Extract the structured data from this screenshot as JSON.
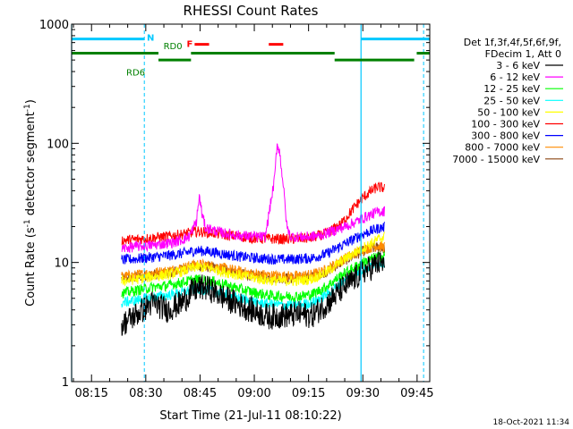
{
  "chart_data": {
    "type": "line",
    "title": "RHESSI Count Rates",
    "xlabel": "Start Time (21-Jul-11 08:10:22)",
    "ylabel_main": "Count Rate (s",
    "ylabel_sup1": "-1",
    "ylabel_mid": " detector segment",
    "ylabel_sup2": "-1",
    "ylabel_end": ")",
    "x_axis": {
      "unit": "minutes since 08:00",
      "xlim": [
        9.5,
        108.5
      ],
      "ticks": [
        {
          "minute": 15,
          "label": "08:15"
        },
        {
          "minute": 30,
          "label": "08:30"
        },
        {
          "minute": 45,
          "label": "08:45"
        },
        {
          "minute": 60,
          "label": "09:00"
        },
        {
          "minute": 75,
          "label": "09:15"
        },
        {
          "minute": 90,
          "label": "09:30"
        },
        {
          "minute": 105,
          "label": "09:45"
        }
      ]
    },
    "y_axis": {
      "scale": "log",
      "ylim": [
        1,
        1000
      ],
      "ticks": [
        {
          "value": 1,
          "label": "1"
        },
        {
          "value": 10,
          "label": "10"
        },
        {
          "value": 100,
          "label": "100"
        },
        {
          "value": 1000,
          "label": "1000"
        }
      ]
    },
    "legend": {
      "placement": "right",
      "header": [
        "Det 1f,3f,4f,5f,6f,9f,",
        "FDecim 1, Att 0"
      ]
    },
    "series": [
      {
        "name": "3 - 6 keV",
        "color": "#000000",
        "points": [
          [
            23.3,
            3.0
          ],
          [
            27,
            3.6
          ],
          [
            32,
            4.6
          ],
          [
            36,
            4.0
          ],
          [
            40,
            4.6
          ],
          [
            43,
            5.8
          ],
          [
            46,
            6.2
          ],
          [
            48,
            5.9
          ],
          [
            52,
            5.0
          ],
          [
            56,
            4.4
          ],
          [
            60,
            3.9
          ],
          [
            64,
            3.5
          ],
          [
            68,
            3.6
          ],
          [
            70,
            3.6
          ],
          [
            72,
            3.7
          ],
          [
            76,
            3.6
          ],
          [
            80,
            4.5
          ],
          [
            84,
            5.9
          ],
          [
            88,
            7.4
          ],
          [
            90,
            8.4
          ],
          [
            92,
            8.9
          ],
          [
            94,
            9.8
          ],
          [
            96,
            9.7
          ]
        ]
      },
      {
        "name": "6 - 12 keV",
        "color": "#ff00ff",
        "points": [
          [
            23.3,
            13.0
          ],
          [
            27,
            13.6
          ],
          [
            30,
            13.8
          ],
          [
            34,
            14.2
          ],
          [
            38,
            14.8
          ],
          [
            40,
            15.5
          ],
          [
            42,
            16.5
          ],
          [
            44,
            22
          ],
          [
            44.8,
            36
          ],
          [
            45.5,
            26
          ],
          [
            46.5,
            19.5
          ],
          [
            49,
            18.5
          ],
          [
            52,
            17.5
          ],
          [
            56,
            16.8
          ],
          [
            60,
            16.5
          ],
          [
            63,
            16.3
          ],
          [
            65.6,
            50
          ],
          [
            66.3,
            100
          ],
          [
            67,
            85
          ],
          [
            68,
            45
          ],
          [
            69,
            20
          ],
          [
            70,
            16.5
          ],
          [
            74,
            16.3
          ],
          [
            78,
            16.8
          ],
          [
            82,
            18.5
          ],
          [
            86,
            20.5
          ],
          [
            90,
            23.5
          ],
          [
            92,
            25
          ],
          [
            94,
            26.5
          ],
          [
            96,
            27
          ]
        ]
      },
      {
        "name": "12 - 25 keV",
        "color": "#00ff00",
        "points": [
          [
            23.3,
            5.5
          ],
          [
            27,
            5.8
          ],
          [
            32,
            6.2
          ],
          [
            36,
            6.4
          ],
          [
            40,
            6.8
          ],
          [
            44,
            7.2
          ],
          [
            48,
            7.0
          ],
          [
            52,
            6.5
          ],
          [
            56,
            6.0
          ],
          [
            60,
            5.6
          ],
          [
            64,
            5.3
          ],
          [
            68,
            5.2
          ],
          [
            72,
            5.2
          ],
          [
            76,
            5.4
          ],
          [
            80,
            6.3
          ],
          [
            84,
            7.8
          ],
          [
            88,
            9.2
          ],
          [
            90,
            10.0
          ],
          [
            92,
            10.6
          ],
          [
            94,
            11.1
          ],
          [
            96,
            11.3
          ]
        ]
      },
      {
        "name": "25 - 50 keV",
        "color": "#00ffff",
        "points": [
          [
            23.3,
            4.6
          ],
          [
            27,
            4.8
          ],
          [
            32,
            5.1
          ],
          [
            36,
            5.3
          ],
          [
            40,
            5.6
          ],
          [
            44,
            6.0
          ],
          [
            48,
            5.8
          ],
          [
            52,
            5.4
          ],
          [
            56,
            5.0
          ],
          [
            60,
            4.7
          ],
          [
            64,
            4.5
          ],
          [
            68,
            4.4
          ],
          [
            72,
            4.4
          ],
          [
            76,
            4.6
          ],
          [
            80,
            5.4
          ],
          [
            84,
            6.7
          ],
          [
            88,
            8.0
          ],
          [
            90,
            8.8
          ],
          [
            92,
            9.3
          ],
          [
            94,
            9.8
          ],
          [
            96,
            10.0
          ]
        ]
      },
      {
        "name": "50 - 100 keV",
        "color": "#ffff00",
        "points": [
          [
            23.3,
            7.0
          ],
          [
            27,
            7.2
          ],
          [
            32,
            7.6
          ],
          [
            36,
            7.9
          ],
          [
            40,
            8.4
          ],
          [
            44,
            9.2
          ],
          [
            48,
            8.9
          ],
          [
            52,
            8.3
          ],
          [
            56,
            7.8
          ],
          [
            60,
            7.4
          ],
          [
            64,
            7.1
          ],
          [
            68,
            7.0
          ],
          [
            72,
            7.0
          ],
          [
            76,
            7.3
          ],
          [
            80,
            8.3
          ],
          [
            84,
            10.2
          ],
          [
            88,
            12.2
          ],
          [
            90,
            13.3
          ],
          [
            92,
            14.2
          ],
          [
            94,
            15.5
          ],
          [
            96,
            16.5
          ]
        ]
      },
      {
        "name": "100 - 300 keV",
        "color": "#ff0000",
        "points": [
          [
            23.3,
            15.3
          ],
          [
            27,
            15.6
          ],
          [
            32,
            16.1
          ],
          [
            36,
            16.5
          ],
          [
            40,
            17.2
          ],
          [
            44,
            18.2
          ],
          [
            48,
            17.8
          ],
          [
            52,
            17.0
          ],
          [
            56,
            16.5
          ],
          [
            60,
            16.0
          ],
          [
            64,
            15.8
          ],
          [
            68,
            15.7
          ],
          [
            72,
            15.8
          ],
          [
            76,
            16.1
          ],
          [
            80,
            17.6
          ],
          [
            84,
            21
          ],
          [
            86,
            25
          ],
          [
            88,
            30
          ],
          [
            90,
            35
          ],
          [
            92,
            39
          ],
          [
            94,
            43
          ],
          [
            96,
            42
          ]
        ]
      },
      {
        "name": "300 - 800 keV",
        "color": "#0000ff",
        "points": [
          [
            23.3,
            10.5
          ],
          [
            27,
            10.7
          ],
          [
            32,
            11.1
          ],
          [
            36,
            11.4
          ],
          [
            40,
            11.9
          ],
          [
            44,
            12.6
          ],
          [
            48,
            12.3
          ],
          [
            52,
            11.7
          ],
          [
            56,
            11.2
          ],
          [
            60,
            10.9
          ],
          [
            64,
            10.7
          ],
          [
            68,
            10.6
          ],
          [
            72,
            10.7
          ],
          [
            76,
            10.9
          ],
          [
            80,
            11.8
          ],
          [
            84,
            13.8
          ],
          [
            88,
            16
          ],
          [
            90,
            17.3
          ],
          [
            92,
            18.2
          ],
          [
            94,
            19.2
          ],
          [
            96,
            19.8
          ]
        ]
      },
      {
        "name": "800 - 7000 keV",
        "color": "#ff8c00",
        "points": [
          [
            23.3,
            7.6
          ],
          [
            27,
            7.8
          ],
          [
            32,
            8.2
          ],
          [
            36,
            8.5
          ],
          [
            40,
            9.0
          ],
          [
            44,
            9.7
          ],
          [
            48,
            9.4
          ],
          [
            52,
            8.9
          ],
          [
            56,
            8.4
          ],
          [
            60,
            8.0
          ],
          [
            64,
            7.8
          ],
          [
            68,
            7.7
          ],
          [
            72,
            7.7
          ],
          [
            76,
            7.9
          ],
          [
            80,
            8.7
          ],
          [
            84,
            10.4
          ],
          [
            88,
            12.0
          ],
          [
            90,
            12.8
          ],
          [
            92,
            13.3
          ],
          [
            94,
            13.8
          ],
          [
            96,
            13.5
          ]
        ]
      },
      {
        "name": "7000 - 15000 keV",
        "color": "#8b4513",
        "points": [
          [
            23.3,
            7.3
          ],
          [
            27,
            7.5
          ],
          [
            32,
            7.9
          ],
          [
            36,
            8.2
          ],
          [
            40,
            8.7
          ],
          [
            44,
            9.4
          ],
          [
            48,
            9.1
          ],
          [
            52,
            8.6
          ],
          [
            56,
            8.1
          ],
          [
            60,
            7.7
          ],
          [
            64,
            7.5
          ],
          [
            68,
            7.4
          ],
          [
            72,
            7.4
          ],
          [
            76,
            7.6
          ],
          [
            80,
            8.4
          ],
          [
            84,
            10.0
          ],
          [
            88,
            11.6
          ],
          [
            90,
            12.4
          ],
          [
            92,
            12.9
          ],
          [
            94,
            13.4
          ],
          [
            96,
            13.1
          ]
        ]
      }
    ],
    "attenuator_segments": {
      "color": "#00c8ff",
      "y": 750,
      "segments": [
        [
          9.5,
          29.6
        ],
        [
          89.5,
          108.5
        ]
      ],
      "label": "N",
      "label_minute": 30.3
    },
    "vlines": {
      "color": "#00c8ff",
      "solid": [
        9.5,
        89.5
      ],
      "dashed": [
        29.6,
        106.8
      ]
    },
    "decimation_segments": {
      "color": "#008000",
      "rows": [
        {
          "y": 570,
          "segments": [
            [
              9.5,
              33.5
            ],
            [
              42.5,
              82.2
            ],
            [
              104.9,
              108.5
            ]
          ]
        },
        {
          "y": 500,
          "segments": [
            [
              33.5,
              42.5
            ],
            [
              82.2,
              104.2
            ]
          ]
        }
      ],
      "labels": [
        {
          "text": "RD0",
          "minute": 37.5,
          "y": 650
        },
        {
          "text": "RD6",
          "minute": 27.2,
          "y": 390
        }
      ]
    },
    "flare_flags": {
      "color": "#ff0000",
      "y": 750,
      "segments": [
        [
          43.5,
          47.5
        ],
        [
          64.0,
          68.0
        ]
      ],
      "label": "F",
      "label_minute": 41.3
    },
    "timestamp": "18-Oct-2021 11:34"
  }
}
